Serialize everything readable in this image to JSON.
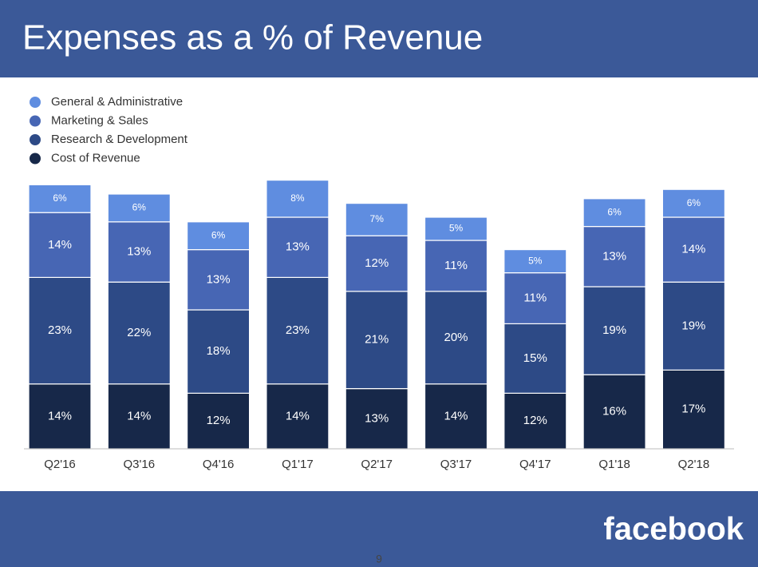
{
  "chart_data": {
    "type": "stacked_bar",
    "title": "Expenses as a % of Revenue",
    "categories": [
      "Q2'16",
      "Q3'16",
      "Q4'16",
      "Q1'17",
      "Q2'17",
      "Q3'17",
      "Q4'17",
      "Q1'18",
      "Q2'18"
    ],
    "series": [
      {
        "name": "Cost of Revenue",
        "color": "#172849",
        "values": [
          14,
          14,
          12,
          14,
          13,
          14,
          12,
          16,
          17
        ],
        "value_labels": [
          "14%",
          "14%",
          "12%",
          "14%",
          "13%",
          "14%",
          "12%",
          "16%",
          "17%"
        ]
      },
      {
        "name": "Research & Development",
        "color": "#2d4a86",
        "values": [
          23,
          22,
          18,
          23,
          21,
          20,
          15,
          19,
          19
        ],
        "value_labels": [
          "23%",
          "22%",
          "18%",
          "23%",
          "21%",
          "20%",
          "15%",
          "19%",
          "19%"
        ]
      },
      {
        "name": "Marketing & Sales",
        "color": "#4766b4",
        "values": [
          14,
          13,
          13,
          13,
          12,
          11,
          11,
          13,
          14
        ],
        "value_labels": [
          "14%",
          "13%",
          "13%",
          "13%",
          "12%",
          "11%",
          "11%",
          "13%",
          "14%"
        ]
      },
      {
        "name": "General & Administrative",
        "color": "#5f8de0",
        "values": [
          6,
          6,
          6,
          8,
          7,
          5,
          5,
          6,
          6
        ],
        "value_labels": [
          "6%",
          "6%",
          "6%",
          "8%",
          "7%",
          "5%",
          "5%",
          "6%",
          "6%"
        ]
      }
    ],
    "legend": "top-left"
  },
  "slide": {
    "logo": "facebook",
    "page_number": "9"
  }
}
